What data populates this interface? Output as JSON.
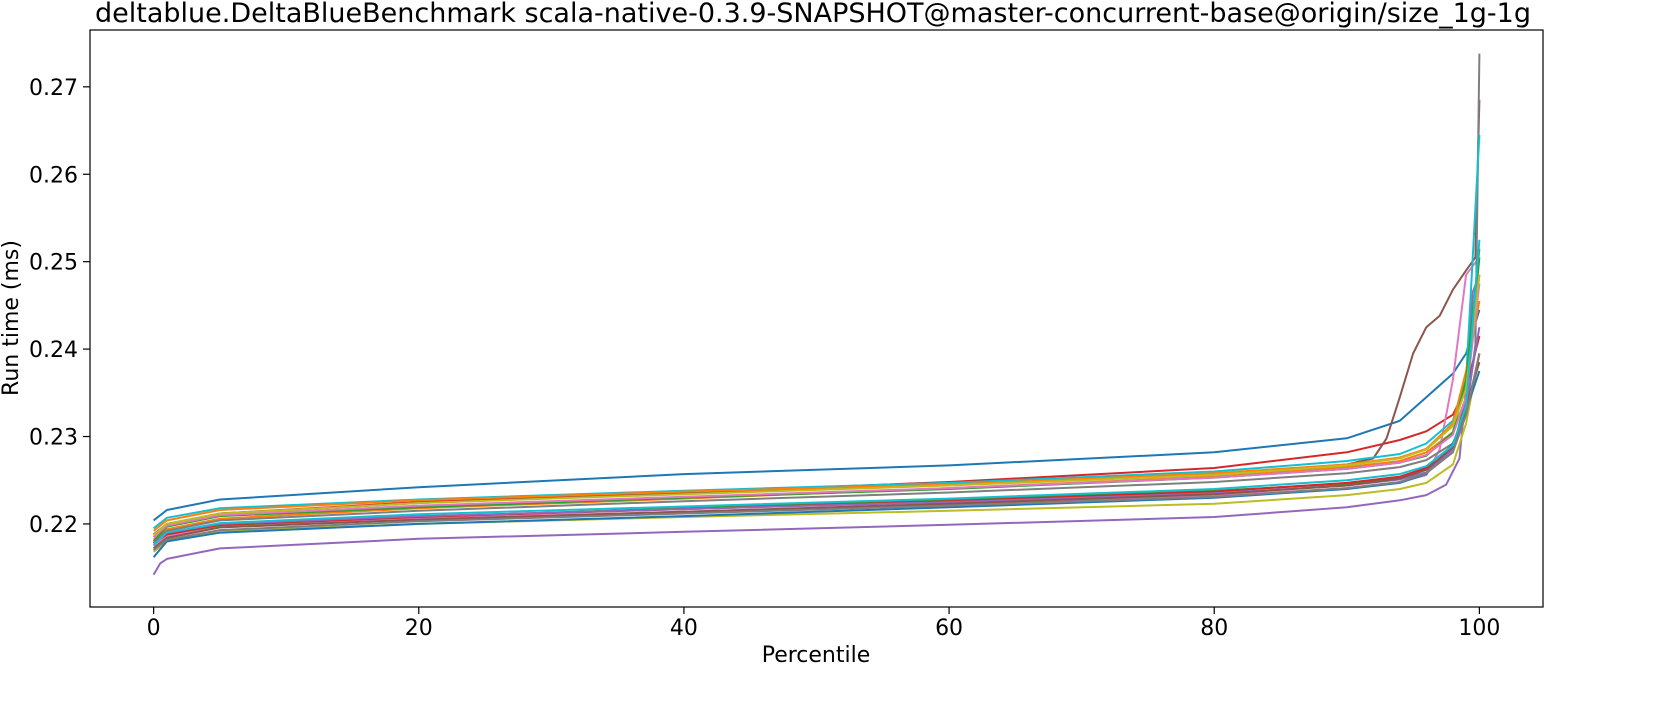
{
  "chart_data": {
    "type": "line",
    "title": "deltablue.DeltaBlueBenchmark scala-native-0.3.9-SNAPSHOT@master-concurrent-base@origin/size_1g-1g",
    "xlabel": "Percentile",
    "ylabel": "Run time (ms)",
    "xlim": [
      -4.8,
      104.8
    ],
    "ylim": [
      0.2105,
      0.2765
    ],
    "xticks": [
      0,
      20,
      40,
      60,
      80,
      100
    ],
    "xtick_labels": [
      "0",
      "20",
      "40",
      "60",
      "80",
      "100"
    ],
    "yticks": [
      0.22,
      0.23,
      0.24,
      0.25,
      0.26,
      0.27
    ],
    "ytick_labels": [
      "0.22",
      "0.23",
      "0.24",
      "0.25",
      "0.26",
      "0.27"
    ],
    "grid": false,
    "legend": "none",
    "series": [
      {
        "color": "#1f77b4",
        "points": [
          [
            0,
            0.2204
          ],
          [
            1,
            0.2216
          ],
          [
            5,
            0.2228
          ],
          [
            20,
            0.2242
          ],
          [
            40,
            0.2257
          ],
          [
            60,
            0.2267
          ],
          [
            80,
            0.2282
          ],
          [
            90,
            0.2298
          ],
          [
            94,
            0.2318
          ],
          [
            96,
            0.2345
          ],
          [
            98,
            0.2372
          ],
          [
            99,
            0.2395
          ],
          [
            100,
            0.2445
          ]
        ]
      },
      {
        "color": "#ff7f0e",
        "points": [
          [
            0,
            0.2182
          ],
          [
            1,
            0.2194
          ],
          [
            5,
            0.2206
          ],
          [
            20,
            0.2218
          ],
          [
            40,
            0.2229
          ],
          [
            60,
            0.2241
          ],
          [
            80,
            0.2254
          ],
          [
            90,
            0.2265
          ],
          [
            94,
            0.2272
          ],
          [
            96,
            0.2282
          ],
          [
            98,
            0.2305
          ],
          [
            99,
            0.2345
          ],
          [
            100,
            0.2485
          ]
        ]
      },
      {
        "color": "#2ca02c",
        "points": [
          [
            0,
            0.2172
          ],
          [
            1,
            0.2187
          ],
          [
            5,
            0.2198
          ],
          [
            20,
            0.2208
          ],
          [
            40,
            0.2218
          ],
          [
            60,
            0.2228
          ],
          [
            80,
            0.2238
          ],
          [
            90,
            0.2246
          ],
          [
            94,
            0.2252
          ],
          [
            96,
            0.2262
          ],
          [
            98,
            0.2285
          ],
          [
            99,
            0.2345
          ],
          [
            100,
            0.2505
          ]
        ]
      },
      {
        "color": "#d62728",
        "points": [
          [
            0,
            0.2185
          ],
          [
            1,
            0.2198
          ],
          [
            5,
            0.2212
          ],
          [
            20,
            0.2225
          ],
          [
            40,
            0.2236
          ],
          [
            60,
            0.2248
          ],
          [
            80,
            0.2264
          ],
          [
            90,
            0.2282
          ],
          [
            94,
            0.2296
          ],
          [
            96,
            0.2306
          ],
          [
            98,
            0.2325
          ],
          [
            99,
            0.2355
          ],
          [
            100,
            0.2415
          ]
        ]
      },
      {
        "color": "#9467bd",
        "points": [
          [
            0,
            0.2142
          ],
          [
            0.5,
            0.2155
          ],
          [
            1,
            0.216
          ],
          [
            5,
            0.2172
          ],
          [
            20,
            0.2183
          ],
          [
            40,
            0.2191
          ],
          [
            60,
            0.2199
          ],
          [
            80,
            0.2208
          ],
          [
            90,
            0.2219
          ],
          [
            94,
            0.2227
          ],
          [
            96,
            0.2233
          ],
          [
            97.5,
            0.2245
          ],
          [
            98.5,
            0.2275
          ],
          [
            99,
            0.2355
          ],
          [
            99.5,
            0.2465
          ],
          [
            100,
            0.2485
          ]
        ]
      },
      {
        "color": "#8c564b",
        "points": [
          [
            0,
            0.2188
          ],
          [
            1,
            0.22
          ],
          [
            5,
            0.2212
          ],
          [
            20,
            0.2224
          ],
          [
            40,
            0.2235
          ],
          [
            60,
            0.2245
          ],
          [
            80,
            0.2257
          ],
          [
            90,
            0.2268
          ],
          [
            92,
            0.2275
          ],
          [
            93,
            0.2298
          ],
          [
            94,
            0.2345
          ],
          [
            95,
            0.2395
          ],
          [
            96,
            0.2425
          ],
          [
            97,
            0.2438
          ],
          [
            98,
            0.2468
          ],
          [
            99,
            0.249
          ],
          [
            99.7,
            0.2505
          ],
          [
            100,
            0.2685
          ]
        ]
      },
      {
        "color": "#e377c2",
        "points": [
          [
            0,
            0.2175
          ],
          [
            1,
            0.2186
          ],
          [
            5,
            0.2196
          ],
          [
            20,
            0.2206
          ],
          [
            40,
            0.2214
          ],
          [
            60,
            0.2222
          ],
          [
            80,
            0.2232
          ],
          [
            90,
            0.2241
          ],
          [
            94,
            0.2248
          ],
          [
            96,
            0.2256
          ],
          [
            97,
            0.2285
          ],
          [
            98,
            0.2365
          ],
          [
            98.5,
            0.2425
          ],
          [
            99,
            0.2485
          ],
          [
            100,
            0.2505
          ]
        ]
      },
      {
        "color": "#7f7f7f",
        "points": [
          [
            0,
            0.2178
          ],
          [
            1,
            0.2192
          ],
          [
            5,
            0.2204
          ],
          [
            20,
            0.2215
          ],
          [
            40,
            0.2226
          ],
          [
            60,
            0.2236
          ],
          [
            80,
            0.2248
          ],
          [
            90,
            0.2258
          ],
          [
            94,
            0.2265
          ],
          [
            96,
            0.2273
          ],
          [
            98,
            0.2292
          ],
          [
            99,
            0.2325
          ],
          [
            99.7,
            0.2405
          ],
          [
            100,
            0.2738
          ]
        ]
      },
      {
        "color": "#bcbd22",
        "points": [
          [
            0,
            0.2168
          ],
          [
            1,
            0.218
          ],
          [
            5,
            0.2192
          ],
          [
            20,
            0.22
          ],
          [
            40,
            0.2208
          ],
          [
            60,
            0.2215
          ],
          [
            80,
            0.2223
          ],
          [
            90,
            0.2233
          ],
          [
            94,
            0.224
          ],
          [
            96,
            0.2247
          ],
          [
            98,
            0.2268
          ],
          [
            99,
            0.2315
          ],
          [
            100,
            0.2395
          ]
        ]
      },
      {
        "color": "#17becf",
        "points": [
          [
            0,
            0.2195
          ],
          [
            1,
            0.2207
          ],
          [
            5,
            0.2218
          ],
          [
            20,
            0.2228
          ],
          [
            40,
            0.2238
          ],
          [
            60,
            0.2247
          ],
          [
            80,
            0.226
          ],
          [
            90,
            0.2272
          ],
          [
            94,
            0.228
          ],
          [
            96,
            0.2292
          ],
          [
            98,
            0.2318
          ],
          [
            99,
            0.2365
          ],
          [
            100,
            0.2645
          ]
        ]
      },
      {
        "color": "#1f77b4",
        "points": [
          [
            0,
            0.2162
          ],
          [
            1,
            0.218
          ],
          [
            5,
            0.219
          ],
          [
            20,
            0.22
          ],
          [
            40,
            0.2209
          ],
          [
            60,
            0.2219
          ],
          [
            80,
            0.223
          ],
          [
            90,
            0.224
          ],
          [
            94,
            0.2247
          ],
          [
            96,
            0.2257
          ],
          [
            98,
            0.2292
          ],
          [
            99,
            0.233
          ],
          [
            100,
            0.2375
          ]
        ]
      },
      {
        "color": "#ff7f0e",
        "points": [
          [
            0,
            0.2192
          ],
          [
            1,
            0.2204
          ],
          [
            5,
            0.2216
          ],
          [
            20,
            0.2227
          ],
          [
            40,
            0.2237
          ],
          [
            60,
            0.2245
          ],
          [
            80,
            0.2258
          ],
          [
            90,
            0.2268
          ],
          [
            94,
            0.2276
          ],
          [
            96,
            0.2286
          ],
          [
            98,
            0.2315
          ],
          [
            99,
            0.2375
          ],
          [
            100,
            0.2455
          ]
        ]
      },
      {
        "color": "#2ca02c",
        "points": [
          [
            0,
            0.218
          ],
          [
            1,
            0.2197
          ],
          [
            5,
            0.2209
          ],
          [
            20,
            0.2219
          ],
          [
            40,
            0.223
          ],
          [
            60,
            0.224
          ],
          [
            80,
            0.2253
          ],
          [
            90,
            0.2263
          ],
          [
            94,
            0.227
          ],
          [
            96,
            0.2278
          ],
          [
            98,
            0.2305
          ],
          [
            99,
            0.2365
          ],
          [
            100,
            0.2515
          ]
        ]
      },
      {
        "color": "#d62728",
        "points": [
          [
            0,
            0.2178
          ],
          [
            1,
            0.2188
          ],
          [
            5,
            0.2199
          ],
          [
            20,
            0.2208
          ],
          [
            40,
            0.2217
          ],
          [
            60,
            0.2226
          ],
          [
            80,
            0.2237
          ],
          [
            90,
            0.2247
          ],
          [
            94,
            0.2254
          ],
          [
            96,
            0.2264
          ],
          [
            98,
            0.2285
          ],
          [
            99,
            0.2325
          ],
          [
            100,
            0.2395
          ]
        ]
      },
      {
        "color": "#9467bd",
        "points": [
          [
            0,
            0.2178
          ],
          [
            1,
            0.219
          ],
          [
            5,
            0.22
          ],
          [
            20,
            0.2209
          ],
          [
            40,
            0.2217
          ],
          [
            60,
            0.2225
          ],
          [
            80,
            0.2235
          ],
          [
            90,
            0.2244
          ],
          [
            94,
            0.2251
          ],
          [
            96,
            0.2259
          ],
          [
            98,
            0.2285
          ],
          [
            99,
            0.2335
          ],
          [
            100,
            0.2425
          ]
        ]
      },
      {
        "color": "#8c564b",
        "points": [
          [
            0,
            0.2172
          ],
          [
            1,
            0.2184
          ],
          [
            5,
            0.2196
          ],
          [
            20,
            0.2205
          ],
          [
            40,
            0.2214
          ],
          [
            60,
            0.2223
          ],
          [
            80,
            0.2234
          ],
          [
            90,
            0.2244
          ],
          [
            94,
            0.2252
          ],
          [
            96,
            0.2262
          ],
          [
            98,
            0.2288
          ],
          [
            99,
            0.2335
          ],
          [
            100,
            0.2385
          ]
        ]
      },
      {
        "color": "#e377c2",
        "points": [
          [
            0,
            0.2185
          ],
          [
            1,
            0.2198
          ],
          [
            5,
            0.221
          ],
          [
            20,
            0.2221
          ],
          [
            40,
            0.2231
          ],
          [
            60,
            0.2241
          ],
          [
            80,
            0.2253
          ],
          [
            90,
            0.2263
          ],
          [
            94,
            0.227
          ],
          [
            96,
            0.2279
          ],
          [
            98,
            0.2302
          ],
          [
            99,
            0.2345
          ],
          [
            100,
            0.2475
          ]
        ]
      },
      {
        "color": "#7f7f7f",
        "points": [
          [
            0,
            0.217
          ],
          [
            1,
            0.2182
          ],
          [
            5,
            0.2193
          ],
          [
            20,
            0.2203
          ],
          [
            40,
            0.2212
          ],
          [
            60,
            0.2221
          ],
          [
            80,
            0.2231
          ],
          [
            90,
            0.2241
          ],
          [
            94,
            0.2248
          ],
          [
            96,
            0.2258
          ],
          [
            98,
            0.2282
          ],
          [
            99,
            0.2325
          ],
          [
            100,
            0.2395
          ]
        ]
      },
      {
        "color": "#bcbd22",
        "points": [
          [
            0,
            0.2187
          ],
          [
            1,
            0.22
          ],
          [
            5,
            0.2212
          ],
          [
            20,
            0.2224
          ],
          [
            40,
            0.2234
          ],
          [
            60,
            0.2244
          ],
          [
            80,
            0.2256
          ],
          [
            90,
            0.2267
          ],
          [
            94,
            0.2275
          ],
          [
            96,
            0.2285
          ],
          [
            98,
            0.2312
          ],
          [
            99,
            0.2355
          ],
          [
            100,
            0.2485
          ]
        ]
      },
      {
        "color": "#17becf",
        "points": [
          [
            0,
            0.2176
          ],
          [
            1,
            0.219
          ],
          [
            5,
            0.2201
          ],
          [
            20,
            0.2211
          ],
          [
            40,
            0.222
          ],
          [
            60,
            0.2229
          ],
          [
            80,
            0.224
          ],
          [
            90,
            0.225
          ],
          [
            94,
            0.2257
          ],
          [
            96,
            0.2266
          ],
          [
            98,
            0.229
          ],
          [
            99,
            0.2335
          ],
          [
            100,
            0.2525
          ]
        ]
      }
    ]
  }
}
